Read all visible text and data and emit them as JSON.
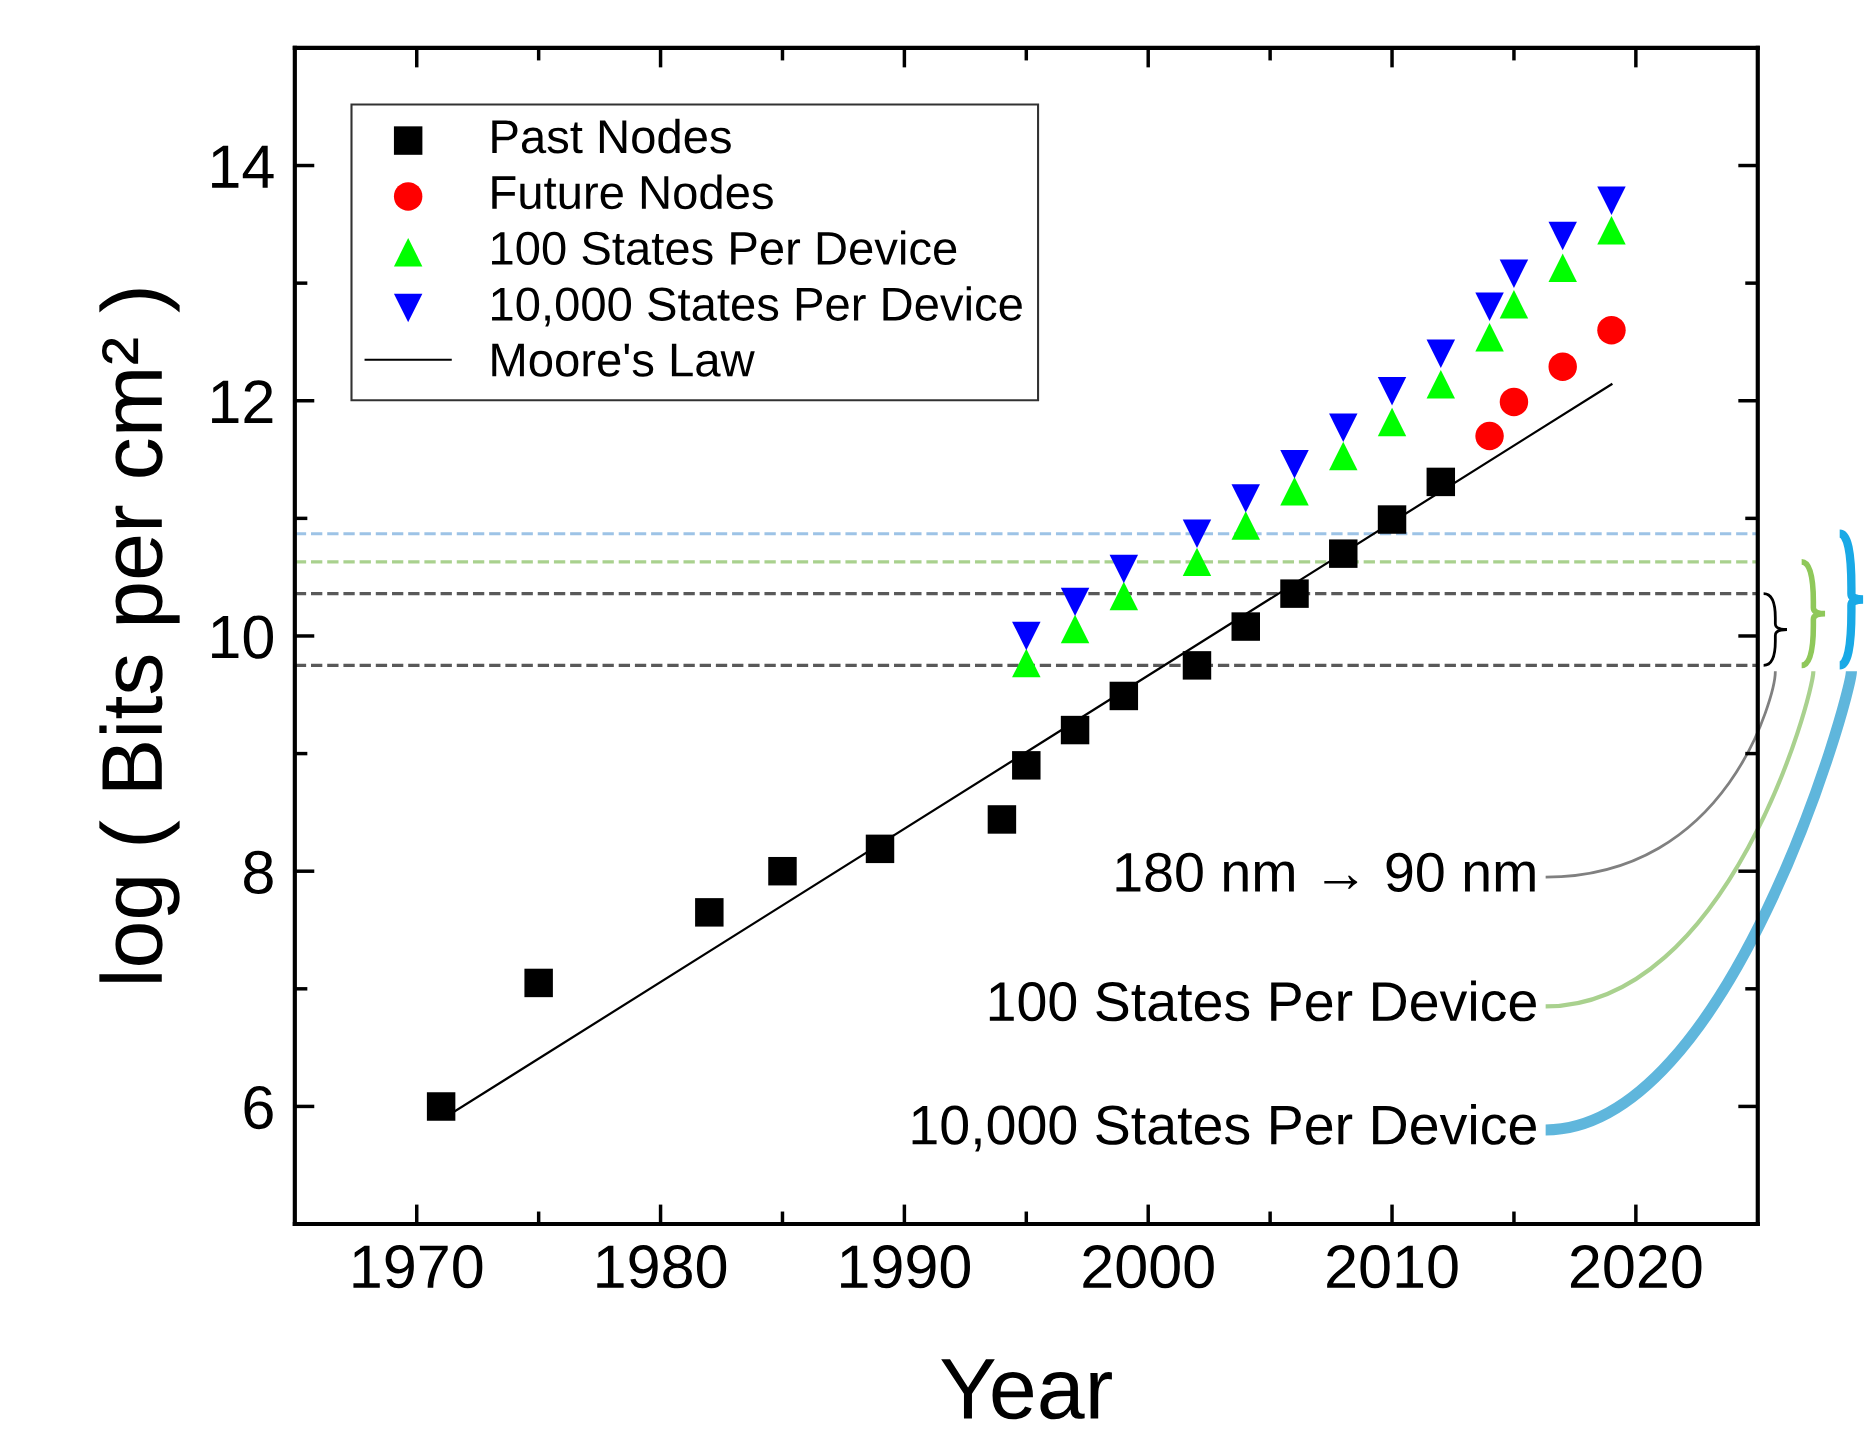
{
  "chart_data": {
    "type": "scatter",
    "xlabel": "Year",
    "ylabel": "log ( Bits per cm² )",
    "xlim": [
      1965,
      2025
    ],
    "xticks": [
      1970,
      {
        "value": 1975,
        "label": null
      },
      1980,
      {
        "value": 1985,
        "label": null
      },
      1990,
      {
        "value": 1995,
        "label": null
      },
      2000,
      {
        "value": 2005,
        "label": null
      },
      2010,
      {
        "value": 2015,
        "label": null
      },
      2020
    ],
    "ylim": [
      5,
      15
    ],
    "yticks": [
      {
        "value": 5,
        "label": null
      },
      6,
      {
        "value": 7,
        "label": null
      },
      8,
      {
        "value": 9,
        "label": null
      },
      10,
      {
        "value": 11,
        "label": null
      },
      12,
      {
        "value": 13,
        "label": null
      },
      14
    ],
    "grid": false,
    "legend": "top left",
    "series": [
      {
        "name": "Past Nodes",
        "marker": "square",
        "color": "#000000",
        "x": [
          1971,
          1975,
          1982,
          1985,
          1989,
          1994,
          1995,
          1997,
          1999,
          2002,
          2004,
          2006,
          2008,
          2010,
          2012
        ],
        "values": [
          6.0,
          7.05,
          7.65,
          8.0,
          8.19,
          8.44,
          8.9,
          9.2,
          9.49,
          9.75,
          10.08,
          10.36,
          10.7,
          10.99,
          11.31
        ]
      },
      {
        "name": "Future Nodes",
        "marker": "circle",
        "color": "#ff0000",
        "x": [
          2014,
          2015,
          2017,
          2019
        ],
        "values": [
          11.7,
          11.99,
          12.29,
          12.6
        ]
      },
      {
        "name": "100 States Per Device",
        "marker": "triangle",
        "color": "#00ff00",
        "x": [
          1995,
          1997,
          1999,
          2002,
          2004,
          2006,
          2008,
          2010,
          2012,
          2014,
          2015,
          2017,
          2019
        ],
        "values": [
          9.77,
          10.06,
          10.34,
          10.63,
          10.94,
          11.23,
          11.53,
          11.82,
          12.14,
          12.54,
          12.82,
          13.13,
          13.45
        ]
      },
      {
        "name": "10,000 States Per Device",
        "marker": "triangle_down",
        "color": "#0000ff",
        "x": [
          1995,
          1997,
          1999,
          2002,
          2004,
          2006,
          2008,
          2010,
          2012,
          2014,
          2015,
          2017,
          2019
        ],
        "values": [
          10.0,
          10.29,
          10.57,
          10.87,
          11.17,
          11.46,
          11.77,
          12.08,
          12.4,
          12.8,
          13.08,
          13.4,
          13.7
        ]
      },
      {
        "name": "Moore's Law",
        "type": "line",
        "marker": "none",
        "line_style": "solid",
        "color": "#000000",
        "x": [
          1971.5,
          2019
        ],
        "values": [
          5.95,
          12.14
        ]
      }
    ],
    "ref_lines": [
      {
        "axis": "y",
        "value": 10.87,
        "color": "#9dc3e6",
        "line_style": "dashed"
      },
      {
        "axis": "y",
        "value": 10.63,
        "color": "#a9d18e",
        "line_style": "dashed"
      },
      {
        "axis": "y",
        "value": 10.36,
        "color": "#595959",
        "line_style": "dashed"
      },
      {
        "axis": "y",
        "value": 9.75,
        "color": "#595959",
        "line_style": "dashed"
      }
    ],
    "annotations": [
      "180 nm → 90 nm",
      "100 States Per Device",
      "10,000 States Per Device"
    ]
  }
}
